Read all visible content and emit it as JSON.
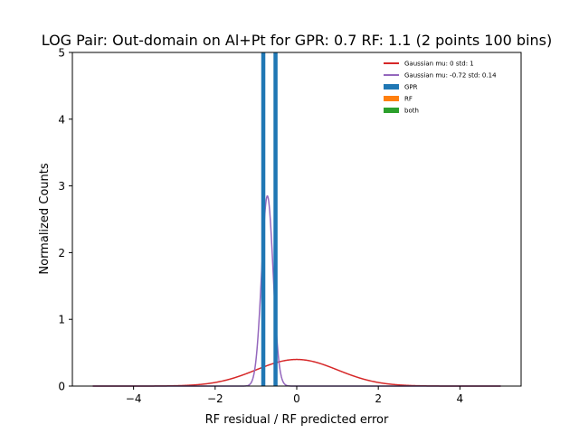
{
  "chart_data": {
    "type": "histogram_with_curves",
    "title": "LOG Pair: Out-domain on Al+Pt for GPR: 0.7 RF: 1.1 (2 points 100 bins)",
    "xlabel": "RF residual / RF predicted error",
    "ylabel": "Normalized Counts",
    "xlim": [
      -5.5,
      5.5
    ],
    "ylim": [
      0,
      5
    ],
    "x_ticks": [
      -4,
      -2,
      0,
      2,
      4
    ],
    "x_tick_labels": [
      "−4",
      "−2",
      "0",
      "2",
      "4"
    ],
    "y_ticks": [
      0,
      1,
      2,
      3,
      4,
      5
    ],
    "y_tick_labels": [
      "0",
      "1",
      "2",
      "3",
      "4",
      "5"
    ],
    "grid": false,
    "legend_position": "top-right",
    "curves": [
      {
        "name": "Gaussian mu: 0 std: 1",
        "mu": 0,
        "std": 1,
        "x_range": [
          -5,
          5
        ],
        "color": "#d62728"
      },
      {
        "name": "Gaussian mu: -0.72 std: 0.14",
        "mu": -0.72,
        "std": 0.14,
        "x_range": [
          -5,
          5
        ],
        "color": "#9467bd"
      }
    ],
    "bars": [
      {
        "name": "GPR",
        "color": "#1f77b4",
        "bins": [
          {
            "x0": -0.87,
            "x1": -0.77,
            "height": 5
          },
          {
            "x0": -0.57,
            "x1": -0.47,
            "height": 5
          }
        ]
      },
      {
        "name": "RF",
        "color": "#ff7f0e",
        "bins": []
      },
      {
        "name": "both",
        "color": "#2ca02c",
        "bins": []
      }
    ],
    "legend": [
      {
        "label": "Gaussian mu: 0 std: 1",
        "kind": "line",
        "color": "#d62728"
      },
      {
        "label": "Gaussian mu: -0.72 std: 0.14",
        "kind": "line",
        "color": "#9467bd"
      },
      {
        "label": "GPR",
        "kind": "patch",
        "color": "#1f77b4"
      },
      {
        "label": "RF",
        "kind": "patch",
        "color": "#ff7f0e"
      },
      {
        "label": "both",
        "kind": "patch",
        "color": "#2ca02c"
      }
    ]
  }
}
